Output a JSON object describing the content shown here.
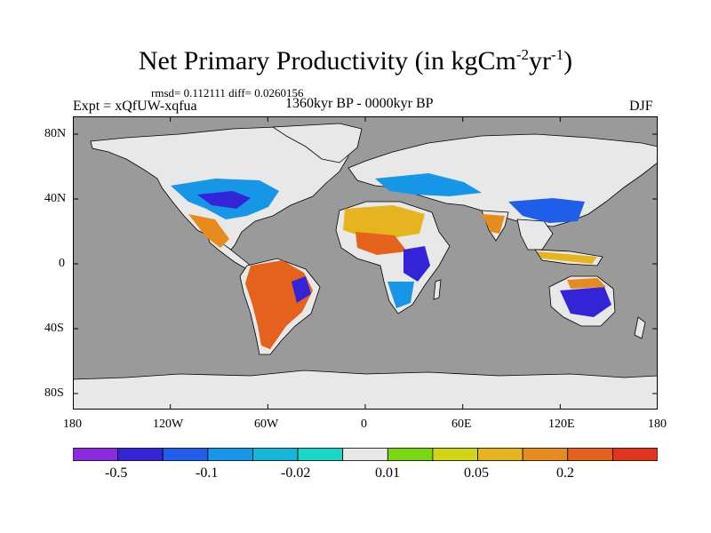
{
  "title": {
    "main": "Net Primary Productivity (in kgCm",
    "sup1": "-2",
    "mid": "yr",
    "sup2": "-1",
    "end": ")"
  },
  "stats_line": "rmsd= 0.112111 diff= 0.0260156",
  "experiment": "Expt = xQfUW-xqfua",
  "period": "1360kyr BP - 0000kyr BP",
  "season": "DJF",
  "map": {
    "lat_ticks": [
      "80N",
      "40N",
      "0",
      "40S",
      "80S"
    ],
    "lon_ticks": [
      "180",
      "120W",
      "60W",
      "0",
      "60E",
      "120E",
      "180"
    ],
    "ocean_color": "#9a9a9a",
    "land_color": "#e8e8e8"
  },
  "colorbar": {
    "colors": [
      "#8a2be2",
      "#3424d8",
      "#1e5ee8",
      "#1696e6",
      "#14b6dc",
      "#18d6c8",
      "#e8e8e8",
      "#7ad812",
      "#d2d612",
      "#e6b41e",
      "#e68c1e",
      "#e4621c",
      "#e2341a"
    ],
    "labels": [
      "-0.5",
      "-0.1",
      "-0.02",
      "0.01",
      "0.05",
      "0.2"
    ]
  }
}
